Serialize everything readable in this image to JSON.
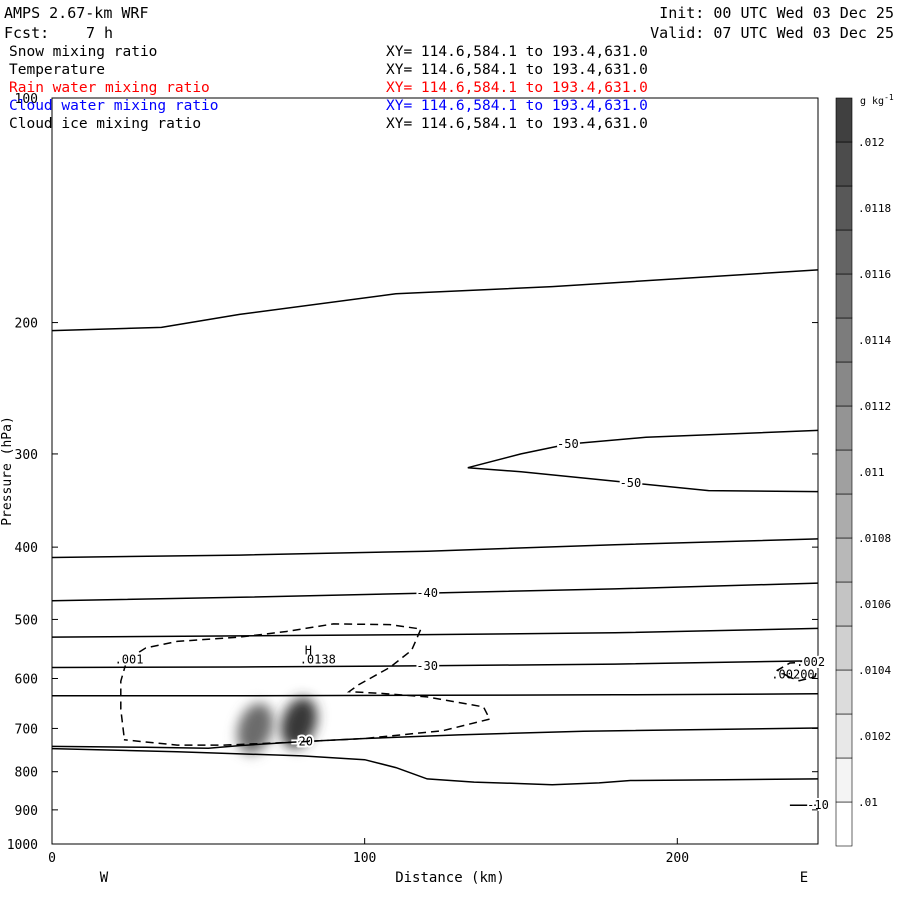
{
  "header": {
    "model": "AMPS 2.67-km WRF",
    "init": "Init: 00 UTC Wed 03 Dec 25",
    "fcst_label": "Fcst:",
    "fcst_value": "7 h",
    "valid": "Valid: 07 UTC Wed 03 Dec 25"
  },
  "fields": [
    {
      "name": "Snow mixing ratio",
      "xy": "XY= 114.6,584.1 to 193.4,631.0",
      "color": "#000000"
    },
    {
      "name": "Temperature",
      "xy": "XY= 114.6,584.1 to 193.4,631.0",
      "color": "#000000"
    },
    {
      "name": "Rain water mixing ratio",
      "xy": "XY= 114.6,584.1 to 193.4,631.0",
      "color": "#ff0000"
    },
    {
      "name": "Cloud water mixing ratio",
      "xy": "XY= 114.6,584.1 to 193.4,631.0",
      "color": "#0000ff"
    },
    {
      "name": "Cloud ice mixing ratio",
      "xy": "XY= 114.6,584.1 to 193.4,631.0",
      "color": "#000000"
    }
  ],
  "chart_data": {
    "type": "contour-cross-section",
    "xlabel": "Distance (km)",
    "ylabel": "Pressure (hPa)",
    "xlim": [
      0,
      245
    ],
    "ylim": [
      100,
      1000
    ],
    "y_scale": "log",
    "x_ticks": [
      0,
      100,
      200
    ],
    "y_ticks": [
      100,
      200,
      300,
      400,
      500,
      600,
      700,
      800,
      900,
      1000
    ],
    "left_label": "W",
    "right_label": "E",
    "temperature_contours": [
      {
        "label": "",
        "points": [
          [
            0,
            205
          ],
          [
            35,
            203
          ],
          [
            60,
            195
          ],
          [
            110,
            183
          ],
          [
            160,
            179
          ],
          [
            245,
            170
          ]
        ]
      },
      {
        "label": "-50",
        "points": [
          [
            133,
            313
          ],
          [
            150,
            300
          ],
          [
            165,
            291
          ],
          [
            190,
            285
          ],
          [
            245,
            279
          ]
        ]
      },
      {
        "label": "-50",
        "points": [
          [
            133,
            313
          ],
          [
            150,
            317
          ],
          [
            185,
            328
          ],
          [
            210,
            336
          ],
          [
            245,
            337
          ]
        ]
      },
      {
        "label": "",
        "points": [
          [
            0,
            413
          ],
          [
            60,
            410
          ],
          [
            120,
            405
          ],
          [
            180,
            397
          ],
          [
            245,
            390
          ]
        ]
      },
      {
        "label": "-40",
        "points": [
          [
            0,
            472
          ],
          [
            60,
            467
          ],
          [
            120,
            461
          ],
          [
            180,
            455
          ],
          [
            245,
            447
          ]
        ]
      },
      {
        "label": "",
        "points": [
          [
            0,
            528
          ],
          [
            60,
            526
          ],
          [
            120,
            524
          ],
          [
            180,
            521
          ],
          [
            245,
            514
          ]
        ]
      },
      {
        "label": "-30",
        "points": [
          [
            0,
            580
          ],
          [
            60,
            579
          ],
          [
            120,
            577
          ],
          [
            180,
            574
          ],
          [
            245,
            568
          ]
        ]
      },
      {
        "label": "",
        "points": [
          [
            0,
            633
          ],
          [
            60,
            633
          ],
          [
            120,
            632
          ],
          [
            180,
            631
          ],
          [
            245,
            629
          ]
        ]
      },
      {
        "label": "-20",
        "points": [
          [
            0,
            740
          ],
          [
            30,
            742
          ],
          [
            50,
            744
          ],
          [
            60,
            738
          ],
          [
            80,
            729
          ],
          [
            100,
            722
          ],
          [
            130,
            714
          ],
          [
            170,
            706
          ],
          [
            245,
            699
          ]
        ]
      },
      {
        "label": "",
        "points": [
          [
            0,
            745
          ],
          [
            40,
            752
          ],
          [
            80,
            762
          ],
          [
            100,
            771
          ],
          [
            110,
            790
          ],
          [
            120,
            818
          ],
          [
            135,
            826
          ],
          [
            150,
            830
          ],
          [
            160,
            833
          ],
          [
            175,
            828
          ],
          [
            185,
            822
          ],
          [
            215,
            820
          ],
          [
            245,
            818
          ]
        ]
      },
      {
        "label": "-10",
        "points": [
          [
            236,
            887
          ],
          [
            245,
            887
          ]
        ]
      }
    ],
    "snow_contours": [
      {
        "label": ".001",
        "points": [
          [
            23,
            715
          ],
          [
            22,
            660
          ],
          [
            22,
            605
          ],
          [
            24,
            566
          ],
          [
            30,
            546
          ],
          [
            40,
            535
          ],
          [
            60,
            528
          ],
          [
            75,
            519
          ],
          [
            90,
            507
          ],
          [
            108,
            508
          ],
          [
            118,
            515
          ],
          [
            115,
            550
          ],
          [
            108,
            580
          ],
          [
            98,
            612
          ],
          [
            95,
            625
          ],
          [
            105,
            628
          ],
          [
            120,
            635
          ],
          [
            138,
            655
          ],
          [
            140,
            680
          ],
          [
            125,
            705
          ],
          [
            100,
            722
          ],
          [
            75,
            731
          ],
          [
            55,
            737
          ],
          [
            40,
            737
          ],
          [
            23,
            725
          ]
        ]
      },
      {
        "label": ".002",
        "points": [
          [
            236,
            598
          ],
          [
            232,
            585
          ],
          [
            236,
            572
          ],
          [
            242,
            570
          ],
          [
            245,
            578
          ],
          [
            244,
            597
          ],
          [
            239,
            604
          ],
          [
            236,
            598
          ]
        ]
      }
    ],
    "snow_annotations": [
      {
        "text": "H",
        "x": 82,
        "y": 557
      },
      {
        "text": ".0138",
        "x": 85,
        "y": 573
      },
      {
        "text": ".00200",
        "x": 237,
        "y": 600
      }
    ],
    "cloud_ice_blobs": [
      {
        "x": 65,
        "y": 700,
        "value": 0.0112
      },
      {
        "x": 79,
        "y": 688,
        "value": 0.0118
      }
    ],
    "colorbar": {
      "unit": "g kg",
      "unit_exp": "-1",
      "tick_labels": [
        ".01",
        ".0102",
        ".0104",
        ".0106",
        ".0108",
        ".011",
        ".0112",
        ".0114",
        ".0116",
        ".0118",
        ".012"
      ],
      "grays": [
        "#ffffff",
        "#f4f4f4",
        "#e8e8e8",
        "#dcdcdc",
        "#d0d0d0",
        "#c4c4c4",
        "#b8b8b8",
        "#acacac",
        "#a0a0a0",
        "#949494",
        "#888888",
        "#7c7c7c",
        "#707070",
        "#646464",
        "#585858",
        "#4c4c4c",
        "#404040"
      ]
    }
  }
}
